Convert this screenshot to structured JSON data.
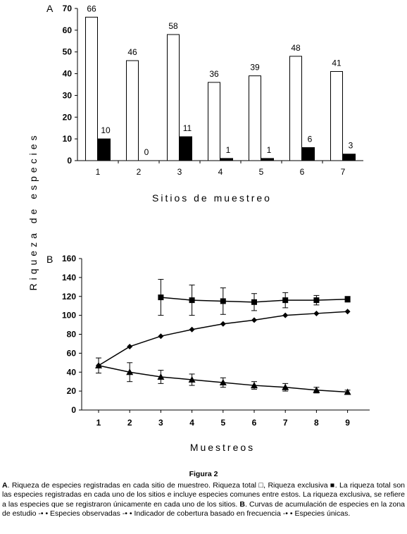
{
  "figure": {
    "y_axis_label": "Riqueza de especies"
  },
  "chart_data": [
    {
      "type": "bar",
      "panel_label": "A",
      "categories": [
        "1",
        "2",
        "3",
        "4",
        "5",
        "6",
        "7"
      ],
      "series": [
        {
          "name": "Riqueza total",
          "values": [
            66,
            46,
            58,
            36,
            39,
            48,
            41
          ],
          "color": "#ffffff"
        },
        {
          "name": "Riqueza exclusiva",
          "values": [
            10,
            0,
            11,
            1,
            1,
            6,
            3
          ],
          "color": "#000000"
        }
      ],
      "xlabel": "Sitios de muestreo",
      "ylim": [
        0,
        70
      ],
      "yticks": [
        0,
        10,
        20,
        30,
        40,
        50,
        60,
        70
      ],
      "grid": false
    },
    {
      "type": "line",
      "panel_label": "B",
      "x": [
        1,
        2,
        3,
        4,
        5,
        6,
        7,
        8,
        9
      ],
      "series": [
        {
          "name": "Especies observadas",
          "marker": "diamond",
          "values": [
            47,
            67,
            78,
            85,
            91,
            95,
            100,
            102,
            104
          ]
        },
        {
          "name": "Indicador de cobertura basado en frecuencia",
          "marker": "square",
          "values": [
            null,
            null,
            119,
            116,
            115,
            114,
            116,
            116,
            117
          ],
          "errors": [
            null,
            null,
            19,
            16,
            14,
            9,
            8,
            5,
            3
          ]
        },
        {
          "name": "Especies únicas",
          "marker": "triangle",
          "values": [
            47,
            40,
            35,
            32,
            29,
            26,
            24,
            21,
            19
          ],
          "errors": [
            8,
            10,
            7,
            6,
            5,
            4,
            4,
            3,
            2
          ]
        }
      ],
      "xlabel": "Muestreos",
      "ylim": [
        0,
        160
      ],
      "yticks": [
        0,
        20,
        40,
        60,
        80,
        100,
        120,
        140,
        160
      ],
      "grid": false
    }
  ],
  "caption": {
    "title": "Figura 2",
    "A_label": "A",
    "text_A": ". Riqueza de especies registradas en cada sitio de muestreo. Riqueza total □, Riqueza exclusiva ■. La riqueza total son las especies registradas en cada uno de los sitios e incluye especies comunes entre estos. La riqueza exclusiva, se refiere a las especies que se registraron únicamente en cada uno de los sitios.",
    "B_label": "B",
    "text_B": ". Curvas de acumulación de especies en la zona de estudio -• • Especies observadas -• • Indicador de cobertura basado en frecuencia -• • Especies únicas."
  }
}
